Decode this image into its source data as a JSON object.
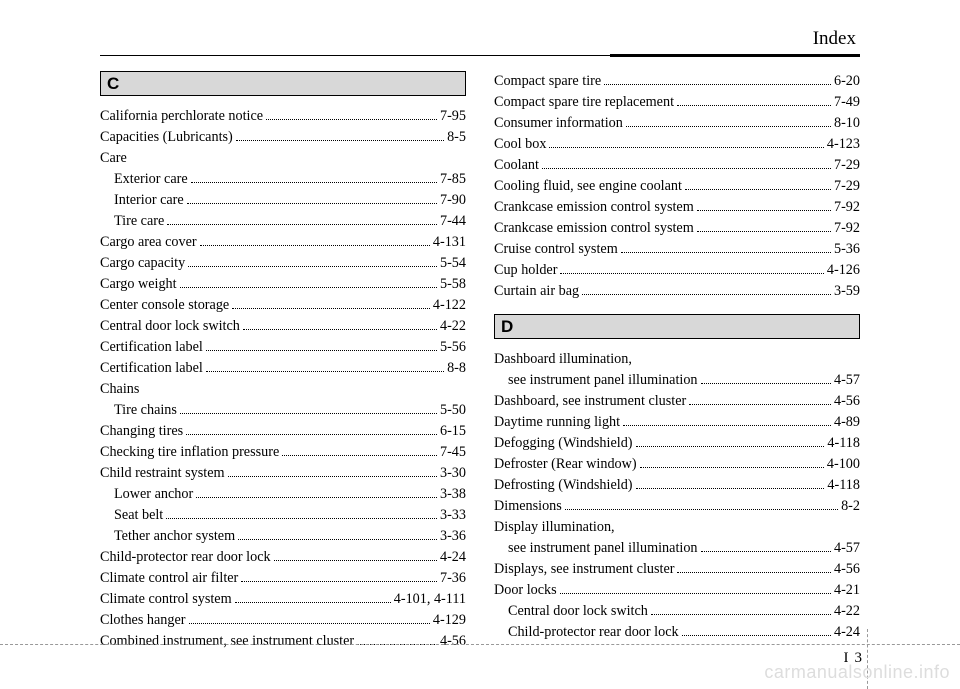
{
  "header": {
    "title": "Index"
  },
  "footer": {
    "page_i": "I",
    "page_n": "3"
  },
  "watermark": "carmanualsonline.info",
  "sections": {
    "left": [
      {
        "type": "letter",
        "text": "C"
      },
      {
        "type": "entry",
        "label": "California perchlorate notice",
        "page": "7-95"
      },
      {
        "type": "entry",
        "label": "Capacities (Lubricants)",
        "page": "8-5"
      },
      {
        "type": "entry",
        "label": "Care",
        "page": "",
        "noleader": true
      },
      {
        "type": "sub",
        "label": "Exterior care",
        "page": "7-85"
      },
      {
        "type": "sub",
        "label": "Interior care",
        "page": "7-90"
      },
      {
        "type": "sub",
        "label": "Tire care",
        "page": "7-44"
      },
      {
        "type": "entry",
        "label": "Cargo area cover",
        "page": "4-131"
      },
      {
        "type": "entry",
        "label": "Cargo capacity",
        "page": "5-54"
      },
      {
        "type": "entry",
        "label": "Cargo weight",
        "page": "5-58"
      },
      {
        "type": "entry",
        "label": "Center console storage",
        "page": "4-122"
      },
      {
        "type": "entry",
        "label": "Central door lock switch",
        "page": "4-22"
      },
      {
        "type": "entry",
        "label": "Certification label",
        "page": "5-56"
      },
      {
        "type": "entry",
        "label": "Certification label",
        "page": "8-8"
      },
      {
        "type": "entry",
        "label": "Chains",
        "page": "",
        "noleader": true
      },
      {
        "type": "sub",
        "label": "Tire chains",
        "page": "5-50"
      },
      {
        "type": "entry",
        "label": "Changing tires",
        "page": "6-15"
      },
      {
        "type": "entry",
        "label": "Checking tire inflation pressure",
        "page": "7-45"
      },
      {
        "type": "entry",
        "label": "Child restraint system",
        "page": "3-30"
      },
      {
        "type": "sub",
        "label": "Lower anchor",
        "page": "3-38"
      },
      {
        "type": "sub",
        "label": "Seat belt",
        "page": "3-33"
      },
      {
        "type": "sub",
        "label": "Tether anchor system",
        "page": "3-36"
      },
      {
        "type": "entry",
        "label": "Child-protector rear door lock",
        "page": "4-24"
      },
      {
        "type": "entry",
        "label": "Climate control air filter",
        "page": "7-36"
      },
      {
        "type": "entry",
        "label": "Climate control system",
        "page": "4-101, 4-111"
      },
      {
        "type": "entry",
        "label": "Clothes hanger",
        "page": "4-129"
      },
      {
        "type": "entry",
        "label": "Combined instrument, see instrument cluster",
        "page": "4-56"
      }
    ],
    "right": [
      {
        "type": "entry",
        "label": "Compact spare tire",
        "page": "6-20"
      },
      {
        "type": "entry",
        "label": "Compact spare tire replacement",
        "page": "7-49"
      },
      {
        "type": "entry",
        "label": "Consumer information",
        "page": "8-10"
      },
      {
        "type": "entry",
        "label": "Cool box",
        "page": "4-123"
      },
      {
        "type": "entry",
        "label": "Coolant",
        "page": "7-29"
      },
      {
        "type": "entry",
        "label": "Cooling fluid, see engine coolant",
        "page": "7-29"
      },
      {
        "type": "entry",
        "label": "Crankcase emission control system",
        "page": "7-92"
      },
      {
        "type": "entry",
        "label": "Crankcase emission control system",
        "page": "7-92"
      },
      {
        "type": "entry",
        "label": "Cruise control system",
        "page": "5-36"
      },
      {
        "type": "entry",
        "label": "Cup holder",
        "page": "4-126"
      },
      {
        "type": "entry",
        "label": "Curtain air bag",
        "page": "3-59"
      },
      {
        "type": "gap"
      },
      {
        "type": "letter",
        "text": "D"
      },
      {
        "type": "entry",
        "label": "Dashboard illumination,",
        "page": "",
        "noleader": true
      },
      {
        "type": "sub",
        "label": "see instrument panel illumination",
        "page": "4-57"
      },
      {
        "type": "entry",
        "label": "Dashboard, see instrument cluster",
        "page": "4-56"
      },
      {
        "type": "entry",
        "label": "Daytime running light",
        "page": "4-89"
      },
      {
        "type": "entry",
        "label": "Defogging (Windshield)",
        "page": "4-118"
      },
      {
        "type": "entry",
        "label": "Defroster (Rear window)",
        "page": "4-100"
      },
      {
        "type": "entry",
        "label": "Defrosting (Windshield)",
        "page": "4-118"
      },
      {
        "type": "entry",
        "label": "Dimensions",
        "page": "8-2"
      },
      {
        "type": "entry",
        "label": "Display illumination,",
        "page": "",
        "noleader": true
      },
      {
        "type": "sub",
        "label": "see instrument panel illumination",
        "page": "4-57"
      },
      {
        "type": "entry",
        "label": "Displays, see instrument cluster",
        "page": "4-56"
      },
      {
        "type": "entry",
        "label": "Door locks",
        "page": "4-21"
      },
      {
        "type": "sub",
        "label": "Central door lock switch",
        "page": "4-22"
      },
      {
        "type": "sub",
        "label": "Child-protector rear door lock",
        "page": "4-24"
      }
    ]
  }
}
